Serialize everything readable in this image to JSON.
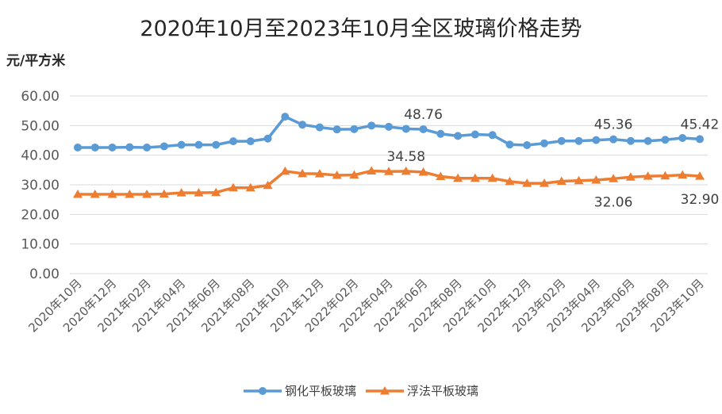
{
  "chart_data": {
    "type": "line",
    "title": "2020年10月至2023年10月全区玻璃价格走势",
    "ylabel": "元/平方米",
    "ylim": [
      0,
      60
    ],
    "yticks": [
      "60.00",
      "50.00",
      "40.00",
      "30.00",
      "20.00",
      "10.00",
      "0.00"
    ],
    "x": [
      "2020年10月",
      "2020年11月",
      "2020年12月",
      "2021年01月",
      "2021年02月",
      "2021年03月",
      "2021年04月",
      "2021年05月",
      "2021年06月",
      "2021年07月",
      "2021年08月",
      "2021年09月",
      "2021年10月",
      "2021年11月",
      "2021年12月",
      "2022年01月",
      "2022年02月",
      "2022年03月",
      "2022年04月",
      "2022年05月",
      "2022年06月",
      "2022年07月",
      "2022年08月",
      "2022年09月",
      "2022年10月",
      "2022年11月",
      "2022年12月",
      "2023年01月",
      "2023年02月",
      "2023年03月",
      "2023年04月",
      "2023年05月",
      "2023年06月",
      "2023年07月",
      "2023年08月",
      "2023年09月",
      "2023年10月"
    ],
    "xtick_labels": [
      "2020年10月",
      "2020年12月",
      "2021年02月",
      "2021年04月",
      "2021年06月",
      "2021年08月",
      "2021年10月",
      "2021年12月",
      "2022年02月",
      "2022年04月",
      "2022年06月",
      "2022年08月",
      "2022年10月",
      "2022年12月",
      "2023年02月",
      "2023年04月",
      "2023年06月",
      "2023年08月",
      "2023年10月"
    ],
    "series": [
      {
        "name": "钢化平板玻璃",
        "color": "#5B9BD5",
        "marker": "circle",
        "values": [
          42.6,
          42.6,
          42.6,
          42.7,
          42.6,
          43.0,
          43.5,
          43.5,
          43.5,
          44.7,
          44.7,
          45.6,
          53.0,
          50.3,
          49.4,
          48.7,
          48.8,
          50.0,
          49.6,
          48.9,
          48.76,
          47.2,
          46.5,
          47.0,
          46.8,
          43.6,
          43.4,
          44.0,
          44.8,
          44.8,
          45.1,
          45.36,
          44.8,
          44.8,
          45.2,
          45.8,
          45.42
        ]
      },
      {
        "name": "浮法平板玻璃",
        "color": "#ED7D31",
        "marker": "triangle",
        "values": [
          26.8,
          26.8,
          26.8,
          26.8,
          26.8,
          26.9,
          27.3,
          27.3,
          27.4,
          29.0,
          29.0,
          29.8,
          34.6,
          33.8,
          33.7,
          33.2,
          33.3,
          34.7,
          34.5,
          34.58,
          34.3,
          32.8,
          32.2,
          32.2,
          32.2,
          31.1,
          30.5,
          30.5,
          31.2,
          31.4,
          31.6,
          32.06,
          32.6,
          32.9,
          33.0,
          33.3,
          32.9
        ]
      }
    ],
    "data_labels": [
      {
        "series": 0,
        "index": 20,
        "text": "48.76",
        "pos": "above"
      },
      {
        "series": 0,
        "index": 31,
        "text": "45.36",
        "pos": "above"
      },
      {
        "series": 0,
        "index": 36,
        "text": "45.42",
        "pos": "above"
      },
      {
        "series": 1,
        "index": 19,
        "text": "34.58",
        "pos": "above"
      },
      {
        "series": 1,
        "index": 31,
        "text": "32.06",
        "pos": "below"
      },
      {
        "series": 1,
        "index": 36,
        "text": "32.90",
        "pos": "below"
      }
    ],
    "grid": true,
    "legend": "bottom"
  }
}
